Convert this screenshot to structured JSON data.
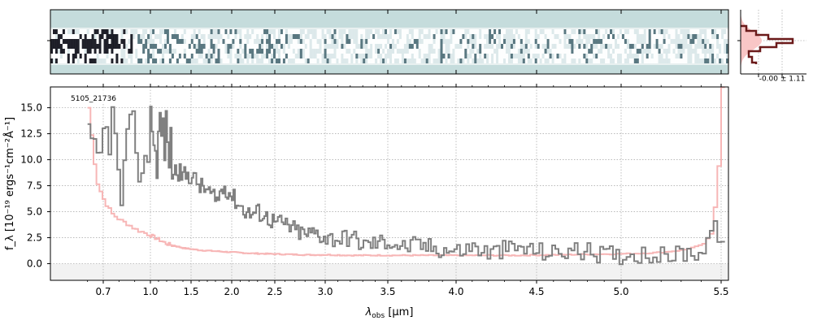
{
  "chart_data": {
    "type": "line",
    "ylabel": "f_λ [10⁻¹⁹ ergs⁻¹cm⁻²Å⁻¹]",
    "xlabel": "λ_obs [μm]",
    "xlabel_main": "λ",
    "xlabel_sub": "obs",
    "xlabel_unit": " [μm]",
    "annotation": "5105_21736",
    "x_ticks": [
      "0.7",
      "1.0",
      "1.5",
      "2.0",
      "2.5",
      "3.0",
      "3.5",
      "4.0",
      "4.5",
      "5.0",
      "5.5"
    ],
    "x_tick_values": [
      0.7,
      1.0,
      1.5,
      2.0,
      2.5,
      3.0,
      3.5,
      4.0,
      4.5,
      5.0,
      5.5
    ],
    "y_ticks": [
      "0.0",
      "2.5",
      "5.0",
      "7.5",
      "10.0",
      "12.5",
      "15.0"
    ],
    "y_tick_values": [
      0,
      2.5,
      5.0,
      7.5,
      10.0,
      12.5,
      15.0
    ],
    "ylim": [
      -1.6,
      17.0
    ],
    "grid": true,
    "series": [
      {
        "role": "flux",
        "color": "#808080",
        "x": [
          0.6,
          0.65,
          0.7,
          0.75,
          0.8,
          0.85,
          0.9,
          0.95,
          1.0,
          1.05,
          1.1,
          1.2,
          1.3,
          1.4,
          1.5,
          1.6,
          1.7,
          1.8,
          1.9,
          2.0,
          2.1,
          2.2,
          2.3,
          2.4,
          2.5,
          2.6,
          2.7,
          2.8,
          2.9,
          3.0,
          3.1,
          3.2,
          3.3,
          3.4,
          3.5,
          3.6,
          3.7,
          3.8,
          3.9,
          4.0,
          4.1,
          4.2,
          4.3,
          4.4,
          4.5,
          4.6,
          4.7,
          4.8,
          4.9,
          5.0,
          5.1,
          5.2,
          5.3,
          5.4,
          5.45,
          5.5
        ],
        "y": [
          11.0,
          8.5,
          12.0,
          14.0,
          6.0,
          10.5,
          13.0,
          6.5,
          16.0,
          9.5,
          13.0,
          12.0,
          9.0,
          8.5,
          8.5,
          7.5,
          7.0,
          6.0,
          7.5,
          6.5,
          5.5,
          4.8,
          5.0,
          4.5,
          4.0,
          3.8,
          3.2,
          2.8,
          3.0,
          2.5,
          2.4,
          2.6,
          1.8,
          2.0,
          2.2,
          1.6,
          1.8,
          1.6,
          1.4,
          1.2,
          1.6,
          1.0,
          1.4,
          1.5,
          1.2,
          1.0,
          1.3,
          1.1,
          0.9,
          0.8,
          1.0,
          0.7,
          1.0,
          1.2,
          3.5,
          2.5
        ]
      },
      {
        "role": "error",
        "color": "#f7b6b6",
        "x": [
          0.6,
          0.65,
          0.7,
          0.75,
          0.8,
          0.85,
          0.9,
          1.0,
          1.1,
          1.2,
          1.4,
          1.6,
          1.8,
          2.0,
          2.2,
          2.4,
          2.6,
          2.8,
          3.0,
          3.2,
          3.4,
          3.6,
          3.8,
          4.0,
          4.2,
          4.4,
          4.6,
          4.8,
          5.0,
          5.1,
          5.2,
          5.3,
          5.4,
          5.45,
          5.48,
          5.5
        ],
        "y": [
          15.0,
          8.0,
          6.0,
          4.8,
          4.2,
          3.8,
          3.3,
          2.7,
          2.3,
          1.9,
          1.5,
          1.3,
          1.2,
          1.1,
          1.0,
          0.95,
          0.9,
          0.85,
          0.85,
          0.8,
          0.8,
          0.8,
          0.8,
          0.8,
          0.8,
          0.8,
          0.85,
          0.9,
          0.95,
          1.0,
          1.1,
          1.3,
          1.8,
          3.0,
          9.0,
          17.0
        ]
      }
    ]
  },
  "spectrum2d": {
    "title": "",
    "colors": {
      "background": "#c5dcdc",
      "dark": "#0a0a14",
      "mid": "#4a6a74",
      "light": "#ffffff"
    }
  },
  "histogram": {
    "annotation": "-0.00 ± 1.11",
    "colors": {
      "fill": "#f9c6c6",
      "line": "#6b1a1a"
    }
  }
}
